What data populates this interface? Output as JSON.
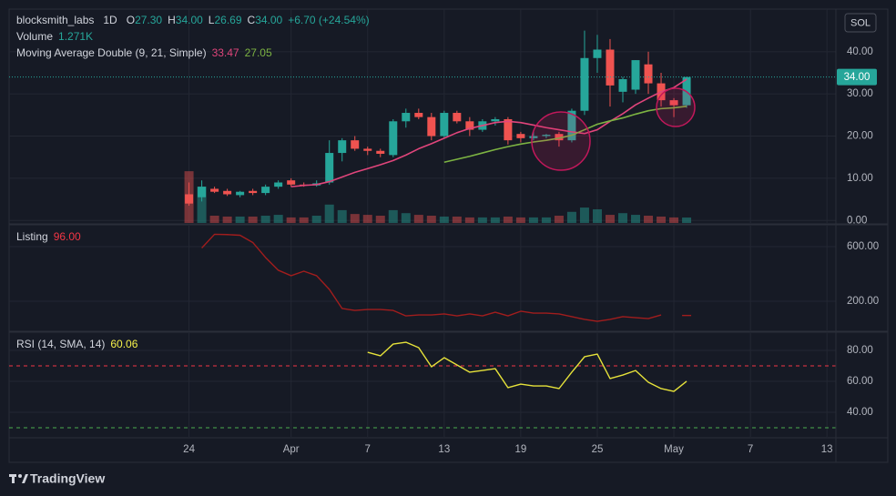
{
  "header": {
    "symbol": "blocksmith_labs",
    "interval": "1D",
    "ohlc": [
      {
        "key": "O",
        "value": "27.30"
      },
      {
        "key": "H",
        "value": "34.00"
      },
      {
        "key": "L",
        "value": "26.69"
      },
      {
        "key": "C",
        "value": "34.00"
      }
    ],
    "change": "+6.70 (+24.54%)"
  },
  "currency": "SOL",
  "last_price_label": "34.00",
  "brand": "TradingView",
  "chart_data": [
    {
      "type": "candlestick",
      "xlim": [
        -14.1,
        50.7
      ],
      "ylim": [
        -0.6,
        50.1
      ],
      "yticks": [
        {
          "value": 40,
          "label": "40.00"
        },
        {
          "value": 30,
          "label": "30.00"
        },
        {
          "value": 20,
          "label": "20.00"
        },
        {
          "value": 10,
          "label": "10.00"
        },
        {
          "value": 0,
          "label": "0.00"
        }
      ],
      "up_color": "#26a69a",
      "down_color": "#ef5350",
      "open": [
        6.2,
        5.5,
        7.5,
        7,
        6,
        7,
        6.5,
        8,
        9.5,
        8.5,
        8.3,
        9,
        16,
        19,
        17,
        16.5,
        15.5,
        23.5,
        25.5,
        24.5,
        20,
        25.5,
        23.5,
        21.5,
        23.5,
        24,
        20.5,
        19.5,
        20,
        20.5,
        19,
        26,
        38.5,
        40.5,
        30.5,
        31,
        37,
        32.5,
        28.5,
        27.3
      ],
      "high": [
        9,
        9.5,
        8,
        7.5,
        7,
        7.5,
        8.5,
        9.5,
        10,
        9,
        9.5,
        19,
        19.5,
        20,
        17.5,
        17,
        24,
        26.5,
        26.5,
        25.5,
        26,
        26,
        24.5,
        24,
        24.5,
        24.5,
        21,
        21,
        20.5,
        21,
        26.5,
        45,
        44,
        43,
        34,
        38,
        40,
        35,
        29,
        34
      ],
      "low": [
        3.5,
        4.5,
        6.5,
        5.8,
        5.5,
        6,
        6,
        7.5,
        8,
        8,
        8,
        8.5,
        14,
        16.5,
        15.5,
        15,
        15,
        22,
        24,
        19,
        19.5,
        23,
        20,
        21,
        22.5,
        18,
        18.5,
        19,
        19.5,
        17.5,
        18.5,
        25,
        35,
        27,
        28,
        30,
        30,
        27,
        24.5,
        26.69
      ],
      "close": [
        4,
        8,
        6.8,
        6.2,
        6.8,
        6.5,
        8,
        9,
        8.5,
        8.3,
        8.8,
        16,
        19,
        17,
        16.5,
        15.8,
        23.5,
        25.5,
        24.5,
        20,
        25.5,
        23.5,
        21.5,
        23.5,
        24,
        19,
        19.5,
        20,
        20.3,
        19,
        26,
        38.5,
        40.5,
        32,
        33.5,
        38,
        32.5,
        28.5,
        27.3,
        34
      ],
      "volume": {
        "name": "Volume",
        "legend_value": "1.271K",
        "ylim": [
          0,
          50
        ],
        "values": [
          12.1,
          8.5,
          1.7,
          1.5,
          1.5,
          1.5,
          1.7,
          1.9,
          1.3,
          1.3,
          1.7,
          4.3,
          3.0,
          2.1,
          1.9,
          1.7,
          3.0,
          2.3,
          1.9,
          1.7,
          1.5,
          1.5,
          1.3,
          1.3,
          1.3,
          1.5,
          1.3,
          1.3,
          1.3,
          1.7,
          2.6,
          3.6,
          3.2,
          1.9,
          2.3,
          1.9,
          1.7,
          1.5,
          1.3,
          1.271
        ]
      },
      "indicator": {
        "name": "Moving Average Double (9, 21, Simple)",
        "series": [
          {
            "color": "#e0457b",
            "legend_value": "33.47",
            "values": [
              null,
              null,
              null,
              null,
              null,
              null,
              null,
              null,
              8,
              8.3,
              8.5,
              9.2,
              10.3,
              11.4,
              12.3,
              13.2,
              14.2,
              15.5,
              17,
              18.2,
              19.5,
              20.8,
              21.8,
              22.5,
              23.2,
              23.5,
              23.2,
              22.6,
              22,
              21.5,
              21,
              20.6,
              21.5,
              23.5,
              25.3,
              27.4,
              29,
              30.5,
              31.5,
              33.47
            ]
          },
          {
            "color": "#7cb342",
            "legend_value": "27.05",
            "values": [
              null,
              null,
              null,
              null,
              null,
              null,
              null,
              null,
              null,
              null,
              null,
              null,
              null,
              null,
              null,
              null,
              null,
              null,
              null,
              null,
              13.8,
              14.5,
              15.2,
              16,
              16.8,
              17.5,
              18.1,
              18.6,
              19,
              19.5,
              20.2,
              21.5,
              22.8,
              23.6,
              24.3,
              25.2,
              26,
              26.5,
              26.7,
              27.05
            ]
          }
        ]
      }
    },
    {
      "type": "line",
      "xlim": [
        -14.1,
        50.7
      ],
      "ylim": [
        -13,
        753
      ],
      "yticks": [
        {
          "value": 600,
          "label": "600.00"
        },
        {
          "value": 200,
          "label": "200.00"
        }
      ],
      "series": [
        {
          "name": "Listing",
          "color": "#a11d1d",
          "legend_color": "#f23645",
          "legend_value": "96.00",
          "values": [
            null,
            590,
            690,
            688,
            683,
            630,
            520,
            427,
            387,
            420,
            387,
            287,
            147,
            133,
            140,
            140,
            133,
            93,
            100,
            100,
            107,
            93,
            107,
            93,
            120,
            93,
            127,
            113,
            113,
            107,
            87,
            67,
            53,
            67,
            87,
            80,
            73,
            100,
            null,
            96
          ]
        }
      ]
    },
    {
      "type": "line",
      "xlim": [
        -14.1,
        50.7
      ],
      "ylim": [
        24.1,
        91.2
      ],
      "yticks": [
        {
          "value": 80,
          "label": "80.00"
        },
        {
          "value": 60,
          "label": "60.00"
        },
        {
          "value": 40,
          "label": "40.00"
        }
      ],
      "levels": [
        {
          "value": 70,
          "color": "#f23645"
        },
        {
          "value": 30,
          "color": "#4caf50"
        }
      ],
      "xticks": [
        {
          "value": 0,
          "label": "24"
        },
        {
          "value": 8,
          "label": "Apr"
        },
        {
          "value": 14,
          "label": "7"
        },
        {
          "value": 20,
          "label": "13"
        },
        {
          "value": 26,
          "label": "19"
        },
        {
          "value": 32,
          "label": "25"
        },
        {
          "value": 38,
          "label": "May"
        },
        {
          "value": 44,
          "label": "7"
        },
        {
          "value": 50,
          "label": "13"
        }
      ],
      "series": [
        {
          "name": "RSI (14, SMA, 14)",
          "color": "#e6e23a",
          "legend_color": "#f5f14a",
          "legend_value": "60.06",
          "values": [
            null,
            null,
            null,
            null,
            null,
            null,
            null,
            null,
            null,
            null,
            null,
            null,
            null,
            null,
            78.8,
            76.5,
            84.1,
            85.3,
            81.8,
            69.4,
            75.3,
            70.6,
            65.9,
            67,
            68.2,
            55.9,
            58.2,
            57,
            57,
            55.3,
            65.9,
            75.9,
            77.6,
            61.8,
            64.1,
            67,
            59.4,
            55.3,
            53.5,
            60.06
          ]
        }
      ]
    }
  ]
}
